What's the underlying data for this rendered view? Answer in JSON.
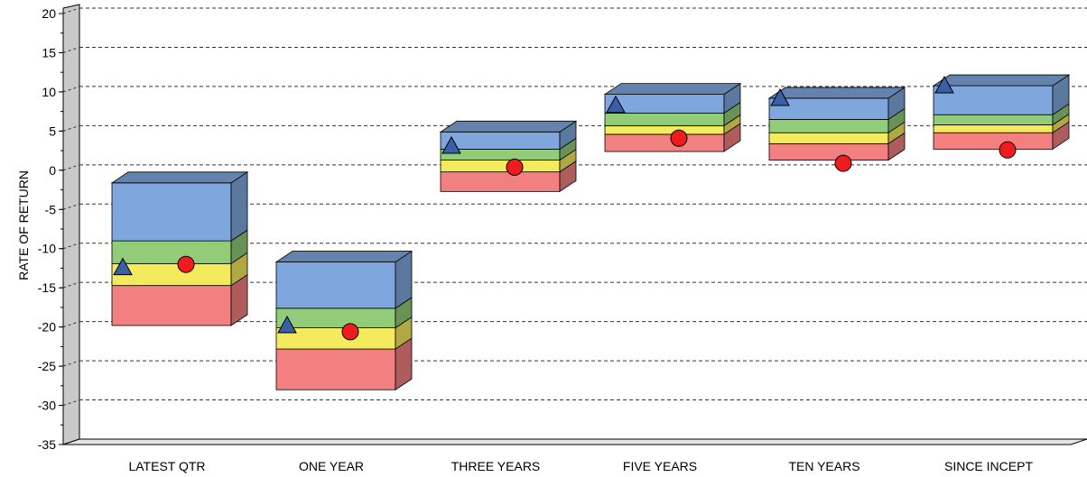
{
  "chart_data": {
    "type": "floating-bar",
    "xlabel": "",
    "ylabel": "RATE OF RETURN",
    "ylim": [
      -35,
      20
    ],
    "ytick_step": 5,
    "grid": true,
    "categories": [
      "LATEST QTR",
      "ONE YEAR",
      "THREE YEARS",
      "FIVE YEARS",
      "TEN YEARS",
      "SINCE INCEPT"
    ],
    "boxes": [
      {
        "bottom": -20.5,
        "b1": -15.4,
        "b2": -12.6,
        "b3": -9.7,
        "top": -2.3
      },
      {
        "bottom": -28.7,
        "b1": -23.5,
        "b2": -20.8,
        "b3": -18.3,
        "top": -12.4
      },
      {
        "bottom": -3.4,
        "b1": -0.9,
        "b2": 0.6,
        "b3": 2.0,
        "top": 4.2
      },
      {
        "bottom": 1.7,
        "b1": 3.9,
        "b2": 5.0,
        "b3": 6.6,
        "top": 9.0
      },
      {
        "bottom": 0.6,
        "b1": 2.7,
        "b2": 4.1,
        "b3": 5.8,
        "top": 8.5
      },
      {
        "bottom": 2.0,
        "b1": 4.1,
        "b2": 5.1,
        "b3": 6.4,
        "top": 10.1
      }
    ],
    "series": [
      {
        "marker": "triangle",
        "values": [
          -13.1,
          -20.5,
          2.4,
          7.6,
          8.5,
          10.1
        ]
      },
      {
        "marker": "circle",
        "values": [
          -12.7,
          -21.3,
          -0.3,
          3.4,
          0.2,
          1.9
        ]
      }
    ],
    "colors": {
      "band_top": "#7fa7dd",
      "band_mid_upper": "#92cc78",
      "band_mid_lower": "#f3ea5d",
      "band_bottom": "#f28080",
      "triangle": "#3a5ea8",
      "circle": "#ee1c1c",
      "grid": "#333333",
      "axis_wall": "#c9c9c9"
    }
  }
}
